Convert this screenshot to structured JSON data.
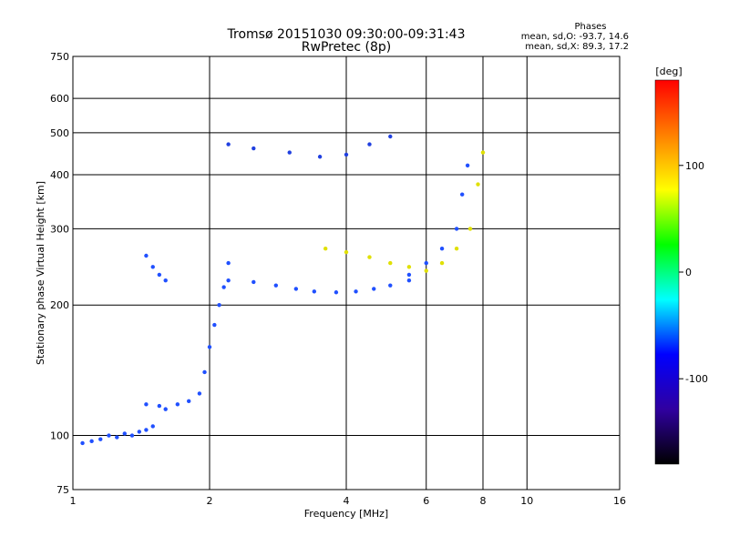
{
  "chart_data": {
    "type": "scatter",
    "title": "Tromsø 20151030 09:30:00-09:31:43",
    "subtitle": "RwPretec (8p)",
    "xlabel": "Frequency [MHz]",
    "ylabel": "Stationary phase Virtual Height [km]",
    "x_scale": "log",
    "y_scale": "log",
    "xlim": [
      1,
      16
    ],
    "ylim": [
      75,
      750
    ],
    "x_ticks": [
      "1",
      "2",
      "4",
      "6",
      "8",
      "10",
      "16"
    ],
    "y_ticks": [
      "750",
      "600",
      "500",
      "400",
      "300",
      "200",
      "100",
      "75"
    ],
    "grid": true,
    "phase_box": {
      "title": "Phases",
      "line_o": "mean, sd,O: -93.7, 14.6",
      "line_x": "mean, sd,X:  89.3, 17.2"
    },
    "colorbar": {
      "label": "[deg]",
      "ticks": [
        "100",
        "0",
        "-100"
      ],
      "colors": [
        "#ff0000",
        "#ff8000",
        "#ffff00",
        "#00ff00",
        "#00ffff",
        "#0000ff",
        "#3000a0",
        "#000000"
      ]
    },
    "series": [
      {
        "color": "#2050ff",
        "points": [
          [
            1.05,
            96
          ],
          [
            1.1,
            97
          ],
          [
            1.15,
            98
          ],
          [
            1.2,
            100
          ],
          [
            1.25,
            99
          ],
          [
            1.3,
            101
          ],
          [
            1.35,
            100
          ],
          [
            1.4,
            102
          ],
          [
            1.45,
            103
          ],
          [
            1.5,
            105
          ]
        ]
      },
      {
        "color": "#2050ff",
        "points": [
          [
            1.45,
            118
          ],
          [
            1.55,
            117
          ],
          [
            1.6,
            115
          ],
          [
            1.7,
            118
          ],
          [
            1.8,
            120
          ],
          [
            1.9,
            125
          ],
          [
            1.95,
            140
          ],
          [
            2.0,
            160
          ],
          [
            2.05,
            180
          ],
          [
            2.1,
            200
          ],
          [
            2.15,
            220
          ],
          [
            2.2,
            250
          ]
        ]
      },
      {
        "color": "#2050ff",
        "points": [
          [
            1.45,
            260
          ],
          [
            1.5,
            245
          ],
          [
            1.55,
            235
          ],
          [
            1.6,
            228
          ]
        ]
      },
      {
        "color": "#2050ff",
        "points": [
          [
            2.2,
            228
          ],
          [
            2.5,
            226
          ],
          [
            2.8,
            222
          ],
          [
            3.1,
            218
          ],
          [
            3.4,
            215
          ],
          [
            3.8,
            214
          ],
          [
            4.2,
            215
          ],
          [
            4.6,
            218
          ],
          [
            5.0,
            222
          ],
          [
            5.5,
            228
          ]
        ]
      },
      {
        "color": "#2040e0",
        "points": [
          [
            2.2,
            470
          ],
          [
            2.5,
            460
          ],
          [
            3.0,
            450
          ],
          [
            3.5,
            440
          ],
          [
            4.0,
            445
          ],
          [
            4.5,
            470
          ],
          [
            5.0,
            490
          ]
        ]
      },
      {
        "color": "#e0e000",
        "points": [
          [
            3.6,
            270
          ],
          [
            4.0,
            265
          ],
          [
            4.5,
            258
          ],
          [
            5.0,
            250
          ],
          [
            5.5,
            245
          ],
          [
            6.0,
            240
          ],
          [
            6.5,
            250
          ],
          [
            7.0,
            270
          ],
          [
            7.5,
            300
          ],
          [
            7.8,
            380
          ],
          [
            8.0,
            450
          ]
        ]
      },
      {
        "color": "#2050ff",
        "points": [
          [
            5.5,
            235
          ],
          [
            6.0,
            250
          ],
          [
            6.5,
            270
          ],
          [
            7.0,
            300
          ],
          [
            7.2,
            360
          ],
          [
            7.4,
            420
          ]
        ]
      }
    ]
  }
}
